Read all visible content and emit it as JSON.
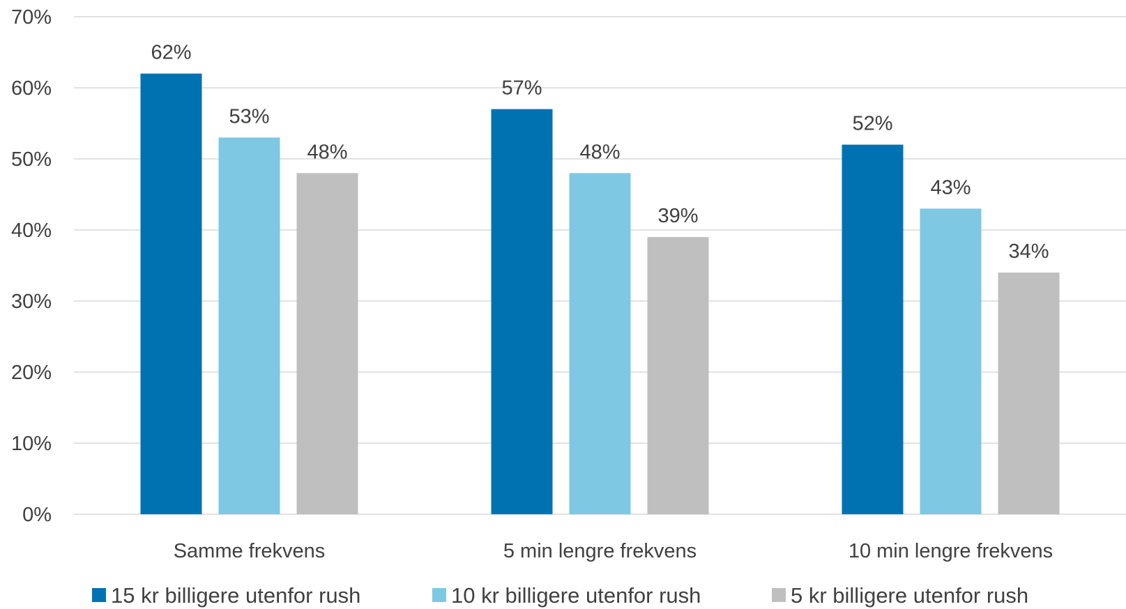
{
  "chart_data": {
    "type": "bar",
    "title": "",
    "xlabel": "",
    "ylabel": "",
    "categories": [
      "Samme frekvens",
      "5 min lengre frekvens",
      "10 min lengre frekvens"
    ],
    "series": [
      {
        "name": "15 kr billigere utenfor rush",
        "values": [
          62,
          57,
          52
        ],
        "color": "#0072B2"
      },
      {
        "name": "10 kr billigere utenfor rush",
        "values": [
          53,
          48,
          43
        ],
        "color": "#7EC8E3"
      },
      {
        "name": "5 kr billigere utenfor rush",
        "values": [
          48,
          39,
          34
        ],
        "color": "#BFBFBF"
      }
    ],
    "data_labels": [
      [
        "62%",
        "57%",
        "52%"
      ],
      [
        "53%",
        "48%",
        "43%"
      ],
      [
        "48%",
        "39%",
        "34%"
      ]
    ],
    "ylim": [
      0,
      70
    ],
    "y_ticks": [
      0,
      10,
      20,
      30,
      40,
      50,
      60,
      70
    ],
    "y_tick_labels": [
      "0%",
      "10%",
      "20%",
      "30%",
      "40%",
      "50%",
      "60%",
      "70%"
    ],
    "grid": true,
    "gridline_color": "#D9D9D9",
    "legend_position": "bottom"
  }
}
